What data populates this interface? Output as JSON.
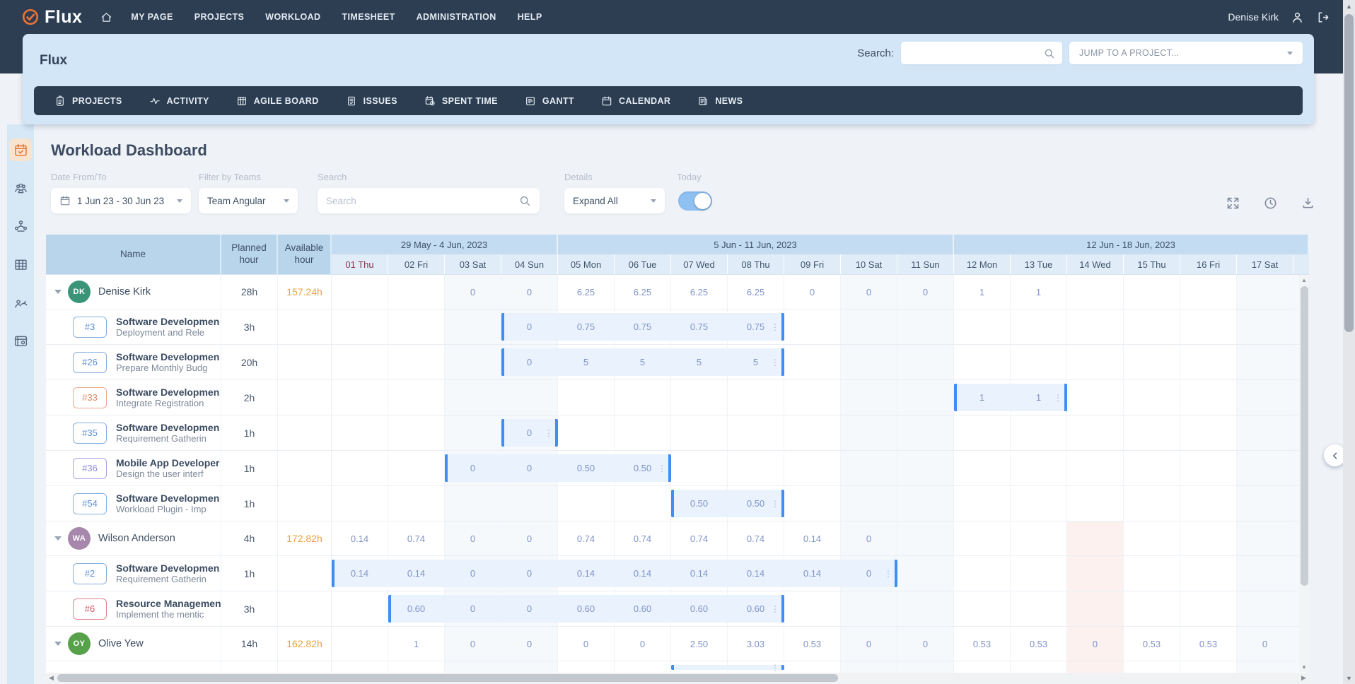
{
  "topbar": {
    "logo_text": "Flux",
    "nav_items": [
      "MY PAGE",
      "PROJECTS",
      "WORKLOAD",
      "TIMESHEET",
      "ADMINISTRATION",
      "HELP"
    ],
    "user_name": "Denise Kirk"
  },
  "header_card": {
    "app_title": "Flux",
    "search_label": "Search:",
    "jump_placeholder": "JUMP TO A PROJECT...",
    "tabs": [
      {
        "label": "PROJECTS",
        "icon": "projects"
      },
      {
        "label": "ACTIVITY",
        "icon": "activity"
      },
      {
        "label": "AGILE BOARD",
        "icon": "agile-board"
      },
      {
        "label": "ISSUES",
        "icon": "issues"
      },
      {
        "label": "SPENT TIME",
        "icon": "spent-time"
      },
      {
        "label": "GANTT",
        "icon": "gantt"
      },
      {
        "label": "CALENDAR",
        "icon": "calendar"
      },
      {
        "label": "NEWS",
        "icon": "news"
      }
    ]
  },
  "sidebar": {
    "items": [
      {
        "name": "workload",
        "icon": "calendar-check",
        "active": true
      },
      {
        "name": "teams",
        "icon": "team",
        "active": false
      },
      {
        "name": "resource-network",
        "icon": "network",
        "active": false
      },
      {
        "name": "spreadsheet",
        "icon": "grid",
        "active": false
      },
      {
        "name": "performance",
        "icon": "gauge-person",
        "active": false
      },
      {
        "name": "settings-board",
        "icon": "card-gear",
        "active": false
      }
    ]
  },
  "page": {
    "title": "Workload Dashboard",
    "filters": {
      "date_label": "Date From/To",
      "date_value": "1 Jun 23 - 30 Jun 23",
      "teams_label": "Filter by Teams",
      "teams_value": "Team Angular",
      "search_label": "Search",
      "search_placeholder": "Search",
      "details_label": "Details",
      "details_value": "Expand All",
      "today_label": "Today",
      "today_on": true
    }
  },
  "table": {
    "fixed_headers": [
      "Name",
      "Planned hour",
      "Available hour"
    ],
    "week_groups": [
      {
        "label": "29 May - 4 Jun, 2023",
        "span": 4
      },
      {
        "label": "5 Jun - 11 Jun, 2023",
        "span": 7
      },
      {
        "label": "12 Jun - 18 Jun, 2023",
        "span": 6,
        "includes_partial": true
      }
    ],
    "days": [
      {
        "label": "01 Thu",
        "today": true
      },
      {
        "label": "02 Fri"
      },
      {
        "label": "03 Sat",
        "weekend": true
      },
      {
        "label": "04 Sun",
        "weekend": true
      },
      {
        "label": "05 Mon"
      },
      {
        "label": "06 Tue"
      },
      {
        "label": "07 Wed"
      },
      {
        "label": "08 Thu"
      },
      {
        "label": "09 Fri"
      },
      {
        "label": "10 Sat",
        "weekend": true
      },
      {
        "label": "11 Sun",
        "weekend": true
      },
      {
        "label": "12 Mon"
      },
      {
        "label": "13 Tue"
      },
      {
        "label": "14 Wed"
      },
      {
        "label": "15 Thu"
      },
      {
        "label": "16 Fri"
      },
      {
        "label": "17 Sat",
        "weekend": true
      }
    ],
    "rows": [
      {
        "type": "person",
        "name": "Denise Kirk",
        "initials": "DK",
        "avatar_color": "#3a9478",
        "planned": "28h",
        "available": "157.24h",
        "values": [
          "",
          "",
          "0",
          "0",
          "6.25",
          "6.25",
          "6.25",
          "6.25",
          "0",
          "0",
          "0",
          "1",
          "1",
          "",
          "",
          "",
          ""
        ]
      },
      {
        "type": "task",
        "issue": "#3",
        "badge": "blue",
        "title": "Software Developmen",
        "subtitle": "Deployment and Rele",
        "planned": "3h",
        "bar": {
          "start": 3,
          "end": 7
        },
        "values": [
          "",
          "",
          "",
          "0",
          "0.75",
          "0.75",
          "0.75",
          "0.75",
          "",
          "",
          "",
          "",
          "",
          "",
          "",
          "",
          ""
        ]
      },
      {
        "type": "task",
        "issue": "#26",
        "badge": "blue",
        "title": "Software Developmen",
        "subtitle": "Prepare Monthly Budg",
        "planned": "20h",
        "bar": {
          "start": 3,
          "end": 7
        },
        "values": [
          "",
          "",
          "",
          "0",
          "5",
          "5",
          "5",
          "5",
          "",
          "",
          "",
          "",
          "",
          "",
          "",
          "",
          ""
        ]
      },
      {
        "type": "task",
        "issue": "#33",
        "badge": "orange",
        "title": "Software Developmen",
        "subtitle": "Integrate Registration",
        "planned": "2h",
        "bar": {
          "start": 11,
          "end": 12
        },
        "values": [
          "",
          "",
          "",
          "",
          "",
          "",
          "",
          "",
          "",
          "",
          "",
          "1",
          "1",
          "",
          "",
          "",
          ""
        ]
      },
      {
        "type": "task",
        "issue": "#35",
        "badge": "blue",
        "title": "Software Developmen",
        "subtitle": "Requirement Gatherin",
        "planned": "1h",
        "bar": {
          "start": 3,
          "end": 3
        },
        "values": [
          "",
          "",
          "",
          "0",
          "",
          "",
          "",
          "",
          "",
          "",
          "",
          "",
          "",
          "",
          "",
          "",
          ""
        ]
      },
      {
        "type": "task",
        "issue": "#36",
        "badge": "purple",
        "title": "Mobile App Developer",
        "subtitle": "Design the user interf",
        "planned": "1h",
        "bar": {
          "start": 2,
          "end": 5
        },
        "values": [
          "",
          "",
          "0",
          "0",
          "0.50",
          "0.50",
          "",
          "",
          "",
          "",
          "",
          "",
          "",
          "",
          "",
          "",
          ""
        ]
      },
      {
        "type": "task",
        "issue": "#54",
        "badge": "blue",
        "title": "Software Developmen",
        "subtitle": "Workload Plugin - Imp",
        "planned": "1h",
        "bar": {
          "start": 6,
          "end": 7
        },
        "values": [
          "",
          "",
          "",
          "",
          "",
          "",
          "0.50",
          "0.50",
          "",
          "",
          "",
          "",
          "",
          "",
          "",
          "",
          ""
        ]
      },
      {
        "type": "person",
        "name": "Wilson Anderson",
        "initials": "WA",
        "avatar_color": "#a787ab",
        "planned": "4h",
        "available": "172.82h",
        "pink": true,
        "values": [
          "0.14",
          "0.74",
          "0",
          "0",
          "0.74",
          "0.74",
          "0.74",
          "0.74",
          "0.14",
          "0",
          "",
          "",
          "",
          "",
          "",
          "",
          ""
        ]
      },
      {
        "type": "task",
        "issue": "#2",
        "badge": "blue",
        "title": "Software Developmen",
        "subtitle": "Requirement Gatherin",
        "planned": "1h",
        "pink": true,
        "bar": {
          "start": 0,
          "end": 9
        },
        "values": [
          "0.14",
          "0.14",
          "0",
          "0",
          "0.14",
          "0.14",
          "0.14",
          "0.14",
          "0.14",
          "0",
          "",
          "",
          "",
          "",
          "",
          "",
          ""
        ]
      },
      {
        "type": "task",
        "issue": "#6",
        "badge": "red",
        "title": "Resource Managemen",
        "subtitle": "Implement the mentic",
        "planned": "3h",
        "pink": true,
        "bar": {
          "start": 1,
          "end": 7
        },
        "values": [
          "",
          "0.60",
          "0",
          "0",
          "0.60",
          "0.60",
          "0.60",
          "0.60",
          "",
          "",
          "",
          "",
          "",
          "",
          "",
          "",
          ""
        ]
      },
      {
        "type": "person",
        "name": "Olive Yew",
        "initials": "OY",
        "avatar_color": "#57a14b",
        "planned": "14h",
        "available": "162.82h",
        "pink": true,
        "values": [
          "",
          "1",
          "0",
          "0",
          "0",
          "0",
          "2.50",
          "3.03",
          "0.53",
          "0",
          "0",
          "0.53",
          "0.53",
          "0",
          "0.53",
          "0.53",
          "0"
        ]
      },
      {
        "type": "task",
        "partial": true,
        "pink": true,
        "bar": {
          "start": 6,
          "end": 7
        },
        "values": [
          "",
          "",
          "",
          "",
          "",
          "",
          "",
          "",
          "",
          "",
          "",
          "",
          "",
          "",
          "",
          "",
          ""
        ]
      }
    ]
  },
  "colors": {
    "navbar": "#2d3e53",
    "header_card": "#d3e6f7",
    "accent_orange": "#e8722e",
    "available_hours": "#e9a23e",
    "bar_edge": "#3f8ef2",
    "bar_fill": "#e9f2fd",
    "value_text": "#8093c8",
    "today_header": "#8c3448",
    "holiday_column": "#fcf1ef"
  }
}
